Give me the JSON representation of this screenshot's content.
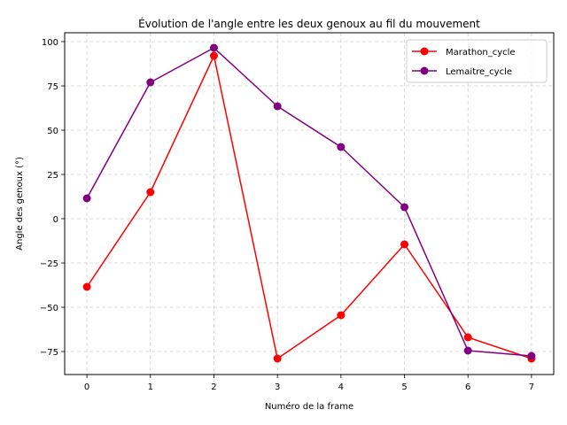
{
  "chart_data": {
    "type": "line",
    "title": "Évolution de l'angle entre les deux genoux au fil du mouvement",
    "xlabel": "Numéro de la frame",
    "ylabel": "Angle des genoux (°)",
    "x": [
      0,
      1,
      2,
      3,
      4,
      5,
      6,
      7
    ],
    "xlim": [
      -0.35,
      7.35
    ],
    "ylim": [
      -88,
      105
    ],
    "xticks": [
      0,
      1,
      2,
      3,
      4,
      5,
      6,
      7
    ],
    "yticks": [
      -75,
      -50,
      -25,
      0,
      25,
      50,
      75,
      100
    ],
    "grid": true,
    "legend_position": "top-right",
    "series": [
      {
        "name": "Marathon_cycle",
        "color": "#ff0000",
        "values": [
          -38.5,
          15,
          92,
          -79,
          -54.5,
          -14.5,
          -67,
          -79
        ]
      },
      {
        "name": "Lemaitre_cycle",
        "color": "#800080",
        "values": [
          11.5,
          77,
          96.5,
          63.5,
          40.5,
          6.5,
          -74.5,
          -77.5
        ]
      }
    ]
  }
}
